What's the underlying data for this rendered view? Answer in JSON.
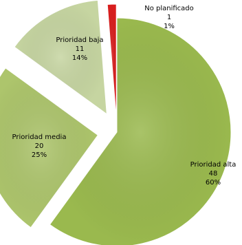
{
  "chart_data": {
    "type": "pie",
    "title": "",
    "slices": [
      {
        "category": "Prioridad alta",
        "count": "48",
        "percent": "60%",
        "value": 48,
        "color": "#9ab94e"
      },
      {
        "category": "Prioridad media",
        "count": "20",
        "percent": "25%",
        "value": 20,
        "color": "#adc56c"
      },
      {
        "category": "Prioridad baja",
        "count": "11",
        "percent": "14%",
        "value": 11,
        "color": "#c6d5a1"
      },
      {
        "category": "No planificado",
        "count": "1",
        "percent": "1%",
        "value": 1,
        "color": "#d81e1e"
      }
    ],
    "exploded": true,
    "start_angle_deg": 0,
    "direction": "clockwise",
    "legend": "none",
    "data_labels": "category, value, percent"
  }
}
